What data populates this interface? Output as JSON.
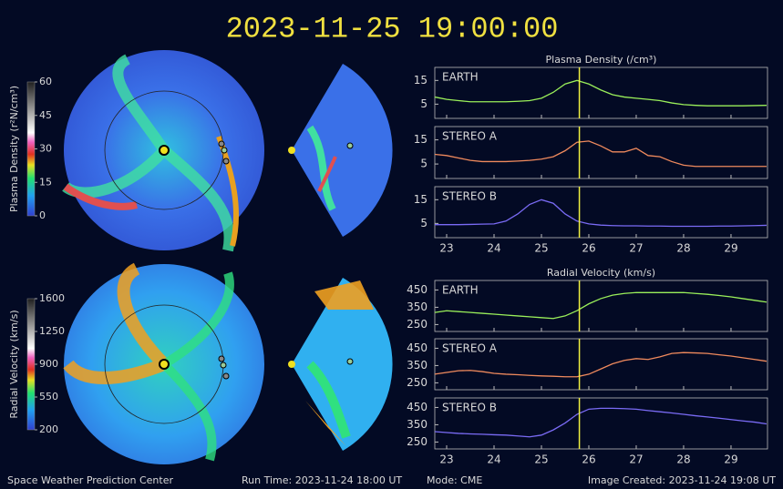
{
  "header": {
    "timestamp": "2023-11-25 19:00:00"
  },
  "footer": {
    "left": "Space Weather Prediction Center",
    "run_time": "Run Time: 2023-11-24 18:00 UT",
    "mode": "Mode: CME",
    "image_created": "Image Created: 2023-11-24 19:08 UT"
  },
  "colorbars": [
    {
      "label": "Plasma Density (r²N/cm³)",
      "lim": [
        0,
        60
      ],
      "ticks": [
        0,
        15,
        30,
        45,
        60
      ]
    },
    {
      "label": "Radial Velocity (km/s)",
      "lim": [
        200,
        1600
      ],
      "ticks": [
        200,
        550,
        900,
        1250,
        1600
      ]
    }
  ],
  "chart_data": [
    {
      "type": "line",
      "title": "Plasma Density (/cm³)",
      "marker_x": 25.8,
      "xlim": [
        22.75,
        29.77
      ],
      "xticks": [
        23,
        24,
        25,
        26,
        27,
        28,
        29
      ],
      "ylim": [
        -1,
        20.5
      ],
      "yticks": [
        5,
        15
      ],
      "x": [
        22.75,
        23,
        23.25,
        23.5,
        23.75,
        24,
        24.25,
        24.5,
        24.75,
        25,
        25.25,
        25.5,
        25.75,
        26,
        26.25,
        26.5,
        26.75,
        27,
        27.25,
        27.5,
        27.75,
        28,
        28.25,
        28.5,
        28.75,
        29,
        29.25,
        29.5,
        29.75
      ],
      "series": [
        {
          "name": "EARTH",
          "color": "#9aef5a",
          "values": [
            8,
            7,
            6.5,
            6,
            6,
            6,
            6,
            6.2,
            6.5,
            7.5,
            10,
            13.5,
            15,
            13.5,
            11,
            9,
            8,
            7.5,
            7,
            6.5,
            5.5,
            4.8,
            4.5,
            4.3,
            4.3,
            4.3,
            4.3,
            4.4,
            4.5
          ]
        }
      ]
    },
    {
      "type": "line",
      "marker_x": 25.8,
      "xlim": [
        22.75,
        29.77
      ],
      "xticks": [
        23,
        24,
        25,
        26,
        27,
        28,
        29
      ],
      "ylim": [
        -1,
        20.5
      ],
      "yticks": [
        5,
        15
      ],
      "x": [
        22.75,
        23,
        23.25,
        23.5,
        23.75,
        24,
        24.25,
        24.5,
        24.75,
        25,
        25.25,
        25.5,
        25.75,
        26,
        26.25,
        26.5,
        26.75,
        27,
        27.25,
        27.5,
        27.75,
        28,
        28.25,
        28.5,
        28.75,
        29,
        29.25,
        29.5,
        29.75
      ],
      "series": [
        {
          "name": "STEREO A",
          "color": "#f08a5d",
          "values": [
            9,
            8.5,
            7.5,
            6.5,
            6,
            6,
            6,
            6.2,
            6.5,
            7,
            8,
            10.5,
            14,
            14.5,
            12.5,
            10,
            10,
            11.5,
            8.5,
            8,
            6,
            4.5,
            4,
            4,
            4,
            4,
            4,
            4,
            4
          ]
        }
      ]
    },
    {
      "type": "line",
      "marker_x": 25.8,
      "xlim": [
        22.75,
        29.77
      ],
      "xticks": [
        23,
        24,
        25,
        26,
        27,
        28,
        29
      ],
      "ylim": [
        -1,
        20.5
      ],
      "yticks": [
        5,
        15
      ],
      "x": [
        22.75,
        23,
        23.25,
        23.5,
        23.75,
        24,
        24.25,
        24.5,
        24.75,
        25,
        25.25,
        25.5,
        25.75,
        26,
        26.25,
        26.5,
        26.75,
        27,
        27.25,
        27.5,
        27.75,
        28,
        28.25,
        28.5,
        28.75,
        29,
        29.25,
        29.5,
        29.75
      ],
      "series": [
        {
          "name": "STEREO B",
          "color": "#7a6bf5",
          "values": [
            4.5,
            4.5,
            4.5,
            4.6,
            4.7,
            4.8,
            6,
            9,
            13,
            15,
            13.5,
            9,
            6,
            4.8,
            4.3,
            4.1,
            4,
            4,
            3.9,
            3.9,
            3.8,
            3.8,
            3.8,
            3.8,
            3.9,
            3.9,
            4,
            4.1,
            4.2
          ]
        }
      ]
    },
    {
      "type": "line",
      "title": "Radial Velocity (km/s)",
      "marker_x": 25.8,
      "xlim": [
        22.75,
        29.77
      ],
      "xticks": [
        23,
        24,
        25,
        26,
        27,
        28,
        29
      ],
      "ylim": [
        210,
        505
      ],
      "yticks": [
        250,
        350,
        450
      ],
      "x": [
        22.75,
        23,
        23.25,
        23.5,
        23.75,
        24,
        24.25,
        24.5,
        24.75,
        25,
        25.25,
        25.5,
        25.75,
        26,
        26.25,
        26.5,
        26.75,
        27,
        27.25,
        27.5,
        27.75,
        28,
        28.25,
        28.5,
        28.75,
        29,
        29.25,
        29.5,
        29.75
      ],
      "series": [
        {
          "name": "EARTH",
          "color": "#9aef5a",
          "values": [
            320,
            330,
            325,
            320,
            315,
            310,
            305,
            300,
            295,
            290,
            285,
            300,
            330,
            370,
            400,
            420,
            430,
            435,
            435,
            435,
            435,
            435,
            430,
            425,
            418,
            410,
            400,
            390,
            380
          ]
        }
      ]
    },
    {
      "type": "line",
      "marker_x": 25.8,
      "xlim": [
        22.75,
        29.77
      ],
      "xticks": [
        23,
        24,
        25,
        26,
        27,
        28,
        29
      ],
      "ylim": [
        210,
        505
      ],
      "yticks": [
        250,
        350,
        450
      ],
      "x": [
        22.75,
        23,
        23.25,
        23.5,
        23.75,
        24,
        24.25,
        24.5,
        24.75,
        25,
        25.25,
        25.5,
        25.75,
        26,
        26.25,
        26.5,
        26.75,
        27,
        27.25,
        27.5,
        27.75,
        28,
        28.25,
        28.5,
        28.75,
        29,
        29.25,
        29.5,
        29.75
      ],
      "series": [
        {
          "name": "STEREO A",
          "color": "#f08a5d",
          "values": [
            300,
            310,
            320,
            322,
            315,
            305,
            300,
            297,
            293,
            290,
            288,
            285,
            285,
            300,
            330,
            360,
            380,
            390,
            385,
            400,
            420,
            425,
            423,
            420,
            412,
            405,
            395,
            385,
            375
          ]
        }
      ]
    },
    {
      "type": "line",
      "marker_x": 25.8,
      "xlim": [
        22.75,
        29.77
      ],
      "xticks": [
        23,
        24,
        25,
        26,
        27,
        28,
        29
      ],
      "ylim": [
        210,
        505
      ],
      "yticks": [
        250,
        350,
        450
      ],
      "x": [
        22.75,
        23,
        23.25,
        23.5,
        23.75,
        24,
        24.25,
        24.5,
        24.75,
        25,
        25.25,
        25.5,
        25.75,
        26,
        26.25,
        26.5,
        26.75,
        27,
        27.25,
        27.5,
        27.75,
        28,
        28.25,
        28.5,
        28.75,
        29,
        29.25,
        29.5,
        29.75
      ],
      "series": [
        {
          "name": "STEREO B",
          "color": "#7a6bf5",
          "values": [
            310,
            305,
            300,
            297,
            295,
            292,
            290,
            285,
            280,
            290,
            320,
            360,
            410,
            440,
            445,
            445,
            443,
            440,
            432,
            425,
            418,
            410,
            402,
            395,
            388,
            380,
            372,
            365,
            355
          ]
        }
      ]
    }
  ]
}
